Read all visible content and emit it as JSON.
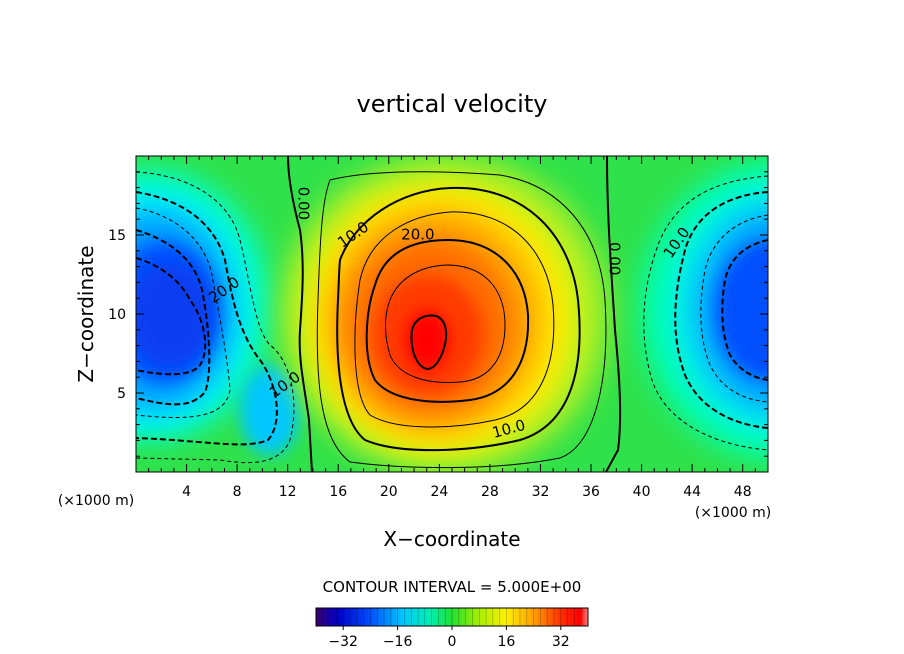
{
  "chart_data": {
    "type": "heatmap",
    "title": "vertical velocity",
    "xlabel": "X−coordinate",
    "ylabel": "Z−coordinate",
    "x_unit_left": "(×1000 m)",
    "x_unit_right": "(×1000 m)",
    "xlim": [
      0,
      50
    ],
    "ylim": [
      0,
      20
    ],
    "x_ticks": [
      4,
      8,
      12,
      16,
      20,
      24,
      28,
      32,
      36,
      40,
      44,
      48
    ],
    "y_ticks": [
      5,
      10,
      15
    ],
    "contour_interval_text": "CONTOUR INTERVAL = 5.000E+00",
    "colorbar": {
      "min": -40,
      "max": 40,
      "step": 5,
      "tick_values": [
        -32,
        -16,
        0,
        16,
        32
      ],
      "tick_labels": [
        "−32",
        "−16",
        "0",
        "16",
        "32"
      ]
    },
    "field_centers": [
      {
        "x": 23,
        "z": 8.5,
        "value": 36,
        "note": "updraft core"
      },
      {
        "x": 3,
        "z": 9.5,
        "value": -28,
        "note": "left downdraft core"
      },
      {
        "x": 50,
        "z": 10,
        "value": -26,
        "note": "right downdraft core"
      }
    ],
    "contour_labels": [
      {
        "text": "0.00",
        "x": 13.2,
        "z": 17.0
      },
      {
        "text": "10.0",
        "x": 17.2,
        "z": 15.0
      },
      {
        "text": "20.0",
        "x": 22.3,
        "z": 15.0
      },
      {
        "text": "10.0",
        "x": 29.5,
        "z": 2.7
      },
      {
        "text": "0.00",
        "x": 37.8,
        "z": 13.5
      },
      {
        "text": "10.0",
        "x": 42.8,
        "z": 14.5
      },
      {
        "text": "20.0",
        "x": 7.0,
        "z": 11.5
      },
      {
        "text": "10.0",
        "x": 11.8,
        "z": 5.5
      }
    ]
  }
}
